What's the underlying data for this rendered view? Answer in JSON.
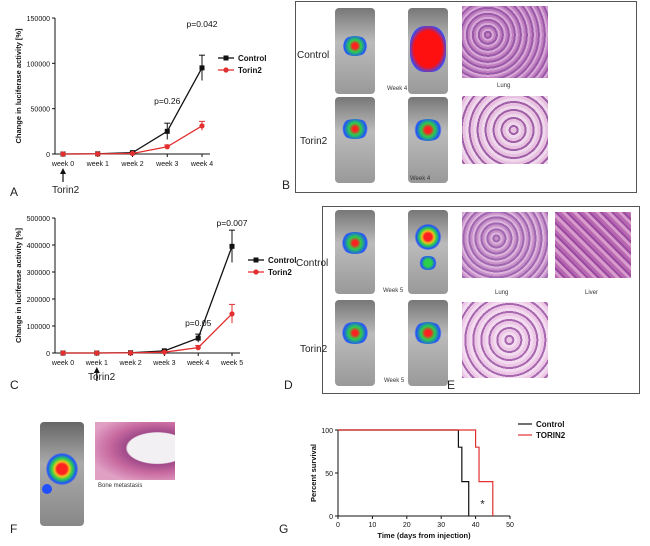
{
  "panel_labels": {
    "a": "A",
    "b": "B",
    "c": "C",
    "d": "D",
    "e": "E",
    "f": "F",
    "g": "G"
  },
  "panel_b": {
    "row1": "Control",
    "row2": "Torin2",
    "week_top": "Week 4",
    "week_bottom": "Week 4",
    "histo_caption": "Lung"
  },
  "panel_d": {
    "row1": "Control",
    "row2": "Torin2",
    "week_top": "Week 5",
    "week_bottom": "Week 5",
    "caption_lung": "Lung",
    "caption_liver": "Liver"
  },
  "panel_f": {
    "caption": "Bone metastasis"
  },
  "chart_a_annot": {
    "arrow_label": "Torin2"
  },
  "chart_c_annot": {
    "arrow_label": "Torin2"
  },
  "colors": {
    "control": "#111111",
    "torin": "#e23030"
  },
  "chart_data": [
    {
      "id": "A",
      "type": "line",
      "ylabel": "Change in luciferase activity [%]",
      "categories": [
        "week 0",
        "week 1",
        "week 2",
        "week 3",
        "week 4"
      ],
      "ylim": [
        0,
        150000
      ],
      "yticks": [
        "0",
        "50000",
        "100000",
        "150000"
      ],
      "series": [
        {
          "name": "Control",
          "values": [
            0,
            200,
            1500,
            25000,
            95000
          ],
          "err": [
            0,
            200,
            600,
            9000,
            14000
          ]
        },
        {
          "name": "Torin2",
          "values": [
            0,
            100,
            600,
            8000,
            31000
          ],
          "err": [
            0,
            100,
            300,
            2000,
            5000
          ]
        }
      ],
      "annotations": [
        {
          "text": "p=0.26",
          "at": 3,
          "y": 55000
        },
        {
          "text": "p=0.042",
          "at": 4,
          "y": 140000
        }
      ]
    },
    {
      "id": "C",
      "type": "line",
      "ylabel": "Change in luciferase activity [%]",
      "categories": [
        "week 0",
        "week 1",
        "week 2",
        "week 3",
        "week 4",
        "week 5"
      ],
      "ylim": [
        0,
        500000
      ],
      "yticks": [
        "0",
        "100000",
        "200000",
        "300000",
        "400000",
        "500000"
      ],
      "series": [
        {
          "name": "Control",
          "values": [
            0,
            0,
            1000,
            8000,
            55000,
            395000
          ],
          "err": [
            0,
            0,
            500,
            2000,
            15000,
            60000
          ]
        },
        {
          "name": "Torin2",
          "values": [
            0,
            0,
            500,
            3000,
            20000,
            145000
          ],
          "err": [
            0,
            0,
            300,
            1500,
            8000,
            35000
          ]
        }
      ],
      "annotations": [
        {
          "text": "p=0.05",
          "at": 4,
          "y": 100000
        },
        {
          "text": "p=0.007",
          "at": 5,
          "y": 470000
        }
      ]
    },
    {
      "id": "G",
      "type": "line",
      "xlabel": "Time (days from injection)",
      "ylabel": "Percent survival",
      "xlim": [
        0,
        50
      ],
      "ylim": [
        0,
        100
      ],
      "xticks": [
        "0",
        "10",
        "20",
        "30",
        "40",
        "50"
      ],
      "yticks": [
        "0",
        "50",
        "100"
      ],
      "series": [
        {
          "name": "Control",
          "steps": [
            [
              0,
              100
            ],
            [
              35,
              100
            ],
            [
              35,
              80
            ],
            [
              36,
              80
            ],
            [
              36,
              40
            ],
            [
              38,
              40
            ],
            [
              38,
              0
            ]
          ]
        },
        {
          "name": "TORIN2",
          "steps": [
            [
              0,
              100
            ],
            [
              40,
              100
            ],
            [
              40,
              80
            ],
            [
              41,
              80
            ],
            [
              41,
              40
            ],
            [
              45,
              40
            ],
            [
              45,
              0
            ]
          ]
        }
      ],
      "annotations": [
        {
          "text": "*",
          "x": 42,
          "y": 10
        }
      ]
    }
  ]
}
